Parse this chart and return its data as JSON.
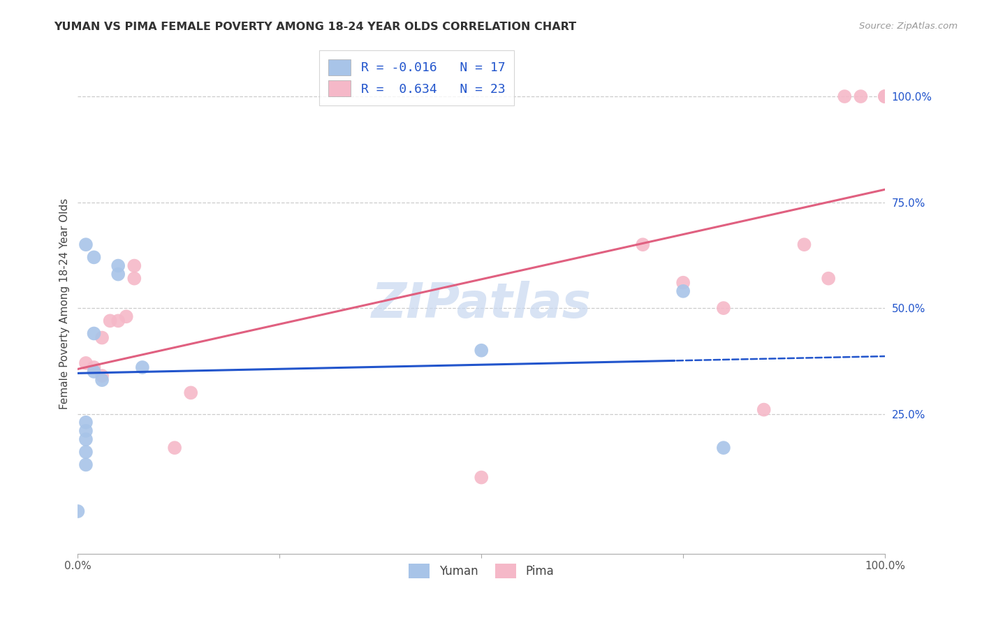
{
  "title": "YUMAN VS PIMA FEMALE POVERTY AMONG 18-24 YEAR OLDS CORRELATION CHART",
  "source": "Source: ZipAtlas.com",
  "ylabel": "Female Poverty Among 18-24 Year Olds",
  "xlim": [
    0,
    100
  ],
  "ylim": [
    -8,
    110
  ],
  "yticks_right": [
    25,
    50,
    75,
    100
  ],
  "ytick_labels_right": [
    "25.0%",
    "50.0%",
    "75.0%",
    "100.0%"
  ],
  "yuman_color": "#a8c4e8",
  "pima_color": "#f5b8c8",
  "yuman_line_color": "#2255cc",
  "pima_line_color": "#e06080",
  "legend_r_yuman": "R = -0.016",
  "legend_n_yuman": "N = 17",
  "legend_r_pima": "R =  0.634",
  "legend_n_pima": "N = 23",
  "legend_text_color": "#2255cc",
  "legend_label_color": "#333333",
  "watermark": "ZIPatlas",
  "watermark_color": "#c8d8f0",
  "yuman_x": [
    1,
    2,
    5,
    5,
    2,
    2,
    3,
    1,
    1,
    1,
    1,
    1,
    0,
    50,
    75,
    80,
    8
  ],
  "yuman_y": [
    65,
    62,
    60,
    58,
    44,
    35,
    33,
    23,
    21,
    19,
    16,
    13,
    2,
    40,
    54,
    17,
    36
  ],
  "pima_x": [
    1,
    2,
    3,
    4,
    5,
    6,
    7,
    7,
    12,
    14,
    50,
    70,
    75,
    80,
    85,
    90,
    93,
    95,
    97,
    100,
    100,
    100,
    3
  ],
  "pima_y": [
    37,
    36,
    43,
    47,
    47,
    48,
    60,
    57,
    17,
    30,
    10,
    65,
    56,
    50,
    26,
    65,
    57,
    100,
    100,
    100,
    100,
    100,
    34
  ],
  "trendline_split_x": 74,
  "dot_size": 200
}
